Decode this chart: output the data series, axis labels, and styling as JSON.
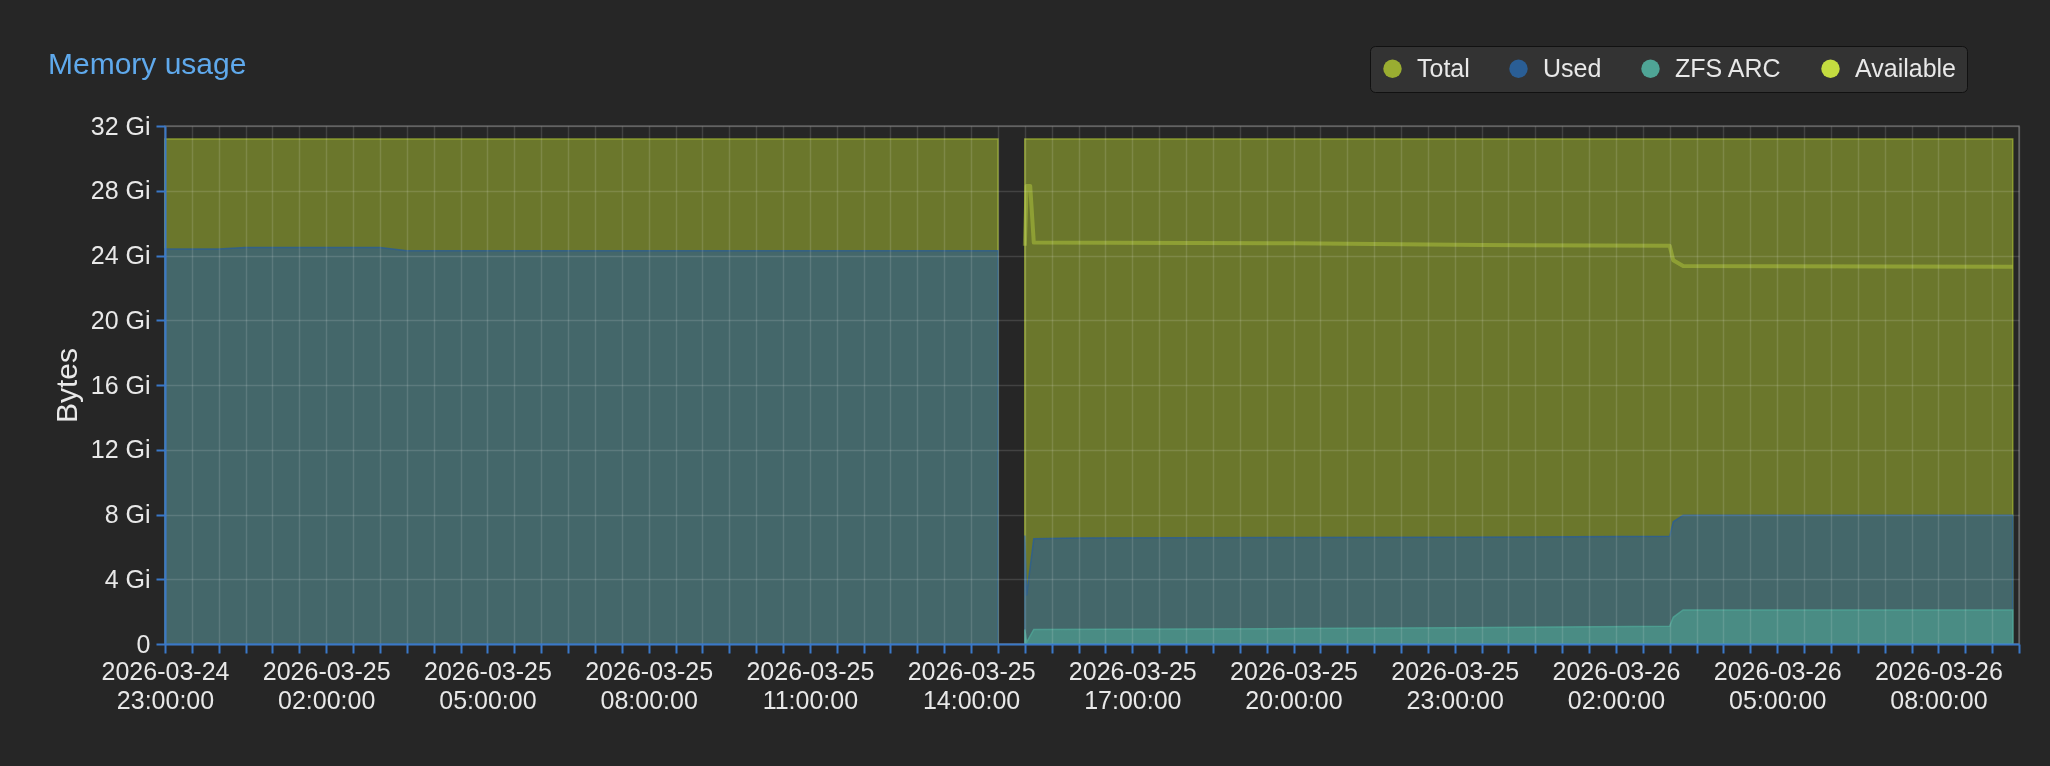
{
  "chart_data": {
    "type": "area",
    "title": "Memory usage",
    "ylabel": "Bytes",
    "xlim": [
      "2026-03-24T23:00",
      "2026-03-26T09:30"
    ],
    "xticks": [
      {
        "value": "2026-03-24T23:00",
        "label": "2026-03-24 23:00:00"
      },
      {
        "value": "2026-03-24T23:30",
        "label": null
      },
      {
        "value": "2026-03-25T00:00",
        "label": null
      },
      {
        "value": "2026-03-25T00:30",
        "label": null
      },
      {
        "value": "2026-03-25T01:00",
        "label": null
      },
      {
        "value": "2026-03-25T01:30",
        "label": null
      },
      {
        "value": "2026-03-25T02:00",
        "label": "2026-03-25 02:00:00"
      },
      {
        "value": "2026-03-25T02:30",
        "label": null
      },
      {
        "value": "2026-03-25T03:00",
        "label": null
      },
      {
        "value": "2026-03-25T03:30",
        "label": null
      },
      {
        "value": "2026-03-25T04:00",
        "label": null
      },
      {
        "value": "2026-03-25T04:30",
        "label": null
      },
      {
        "value": "2026-03-25T05:00",
        "label": "2026-03-25 05:00:00"
      },
      {
        "value": "2026-03-25T05:30",
        "label": null
      },
      {
        "value": "2026-03-25T06:00",
        "label": null
      },
      {
        "value": "2026-03-25T06:30",
        "label": null
      },
      {
        "value": "2026-03-25T07:00",
        "label": null
      },
      {
        "value": "2026-03-25T07:30",
        "label": null
      },
      {
        "value": "2026-03-25T08:00",
        "label": "2026-03-25 08:00:00"
      },
      {
        "value": "2026-03-25T08:30",
        "label": null
      },
      {
        "value": "2026-03-25T09:00",
        "label": null
      },
      {
        "value": "2026-03-25T09:30",
        "label": null
      },
      {
        "value": "2026-03-25T10:00",
        "label": null
      },
      {
        "value": "2026-03-25T10:30",
        "label": null
      },
      {
        "value": "2026-03-25T11:00",
        "label": "2026-03-25 11:00:00"
      },
      {
        "value": "2026-03-25T11:30",
        "label": null
      },
      {
        "value": "2026-03-25T12:00",
        "label": null
      },
      {
        "value": "2026-03-25T12:30",
        "label": null
      },
      {
        "value": "2026-03-25T13:00",
        "label": null
      },
      {
        "value": "2026-03-25T13:30",
        "label": null
      },
      {
        "value": "2026-03-25T14:00",
        "label": "2026-03-25 14:00:00"
      },
      {
        "value": "2026-03-25T14:30",
        "label": null
      },
      {
        "value": "2026-03-25T15:00",
        "label": null
      },
      {
        "value": "2026-03-25T15:30",
        "label": null
      },
      {
        "value": "2026-03-25T16:00",
        "label": null
      },
      {
        "value": "2026-03-25T16:30",
        "label": null
      },
      {
        "value": "2026-03-25T17:00",
        "label": "2026-03-25 17:00:00"
      },
      {
        "value": "2026-03-25T17:30",
        "label": null
      },
      {
        "value": "2026-03-25T18:00",
        "label": null
      },
      {
        "value": "2026-03-25T18:30",
        "label": null
      },
      {
        "value": "2026-03-25T19:00",
        "label": null
      },
      {
        "value": "2026-03-25T19:30",
        "label": null
      },
      {
        "value": "2026-03-25T20:00",
        "label": "2026-03-25 20:00:00"
      },
      {
        "value": "2026-03-25T20:30",
        "label": null
      },
      {
        "value": "2026-03-25T21:00",
        "label": null
      },
      {
        "value": "2026-03-25T21:30",
        "label": null
      },
      {
        "value": "2026-03-25T22:00",
        "label": null
      },
      {
        "value": "2026-03-25T22:30",
        "label": null
      },
      {
        "value": "2026-03-25T23:00",
        "label": "2026-03-25 23:00:00"
      },
      {
        "value": "2026-03-25T23:30",
        "label": null
      },
      {
        "value": "2026-03-26T00:00",
        "label": null
      },
      {
        "value": "2026-03-26T00:30",
        "label": null
      },
      {
        "value": "2026-03-26T01:00",
        "label": null
      },
      {
        "value": "2026-03-26T01:30",
        "label": null
      },
      {
        "value": "2026-03-26T02:00",
        "label": "2026-03-26 02:00:00"
      },
      {
        "value": "2026-03-26T02:30",
        "label": null
      },
      {
        "value": "2026-03-26T03:00",
        "label": null
      },
      {
        "value": "2026-03-26T03:30",
        "label": null
      },
      {
        "value": "2026-03-26T04:00",
        "label": null
      },
      {
        "value": "2026-03-26T04:30",
        "label": null
      },
      {
        "value": "2026-03-26T05:00",
        "label": "2026-03-26 05:00:00"
      },
      {
        "value": "2026-03-26T05:30",
        "label": null
      },
      {
        "value": "2026-03-26T06:00",
        "label": null
      },
      {
        "value": "2026-03-26T06:30",
        "label": null
      },
      {
        "value": "2026-03-26T07:00",
        "label": null
      },
      {
        "value": "2026-03-26T07:30",
        "label": null
      },
      {
        "value": "2026-03-26T08:00",
        "label": "2026-03-26 08:00:00"
      },
      {
        "value": "2026-03-26T08:30",
        "label": null
      },
      {
        "value": "2026-03-26T09:00",
        "label": null
      },
      {
        "value": "2026-03-26T09:30",
        "label": null
      }
    ],
    "ylim": [
      0,
      32
    ],
    "yticks": [
      0,
      {
        "value": 4,
        "label": "4 Gi"
      },
      {
        "value": 8,
        "label": "8 Gi"
      },
      {
        "value": 12,
        "label": "12 Gi"
      },
      {
        "value": 16,
        "label": "16 Gi"
      },
      {
        "value": 20,
        "label": "20 Gi"
      },
      {
        "value": 24,
        "label": "24 Gi"
      },
      {
        "value": 28,
        "label": "28 Gi"
      },
      {
        "value": 32,
        "label": "32 Gi"
      }
    ],
    "grid": true,
    "legend": "top right",
    "series": [
      {
        "name": "Total",
        "color": "#9aad31",
        "x": [
          "2026-03-24T23:00",
          "2026-03-25T14:30",
          "2026-03-25T14:45",
          "2026-03-25T15:00",
          "2026-03-26T09:23"
        ],
        "values": [
          31.2,
          31.2,
          null,
          31.2,
          31.2
        ]
      },
      {
        "name": "Used",
        "color": "#2a5e95",
        "x": [
          "2026-03-24T23:00",
          "2026-03-25T00:00",
          "2026-03-25T00:30",
          "2026-03-25T03:00",
          "2026-03-25T03:30",
          "2026-03-25T14:30",
          "2026-03-25T14:45",
          "2026-03-25T15:00",
          "2026-03-25T15:02",
          "2026-03-25T15:10",
          "2026-03-25T16:00",
          "2026-03-25T23:00",
          "2026-03-26T03:00",
          "2026-03-26T03:04",
          "2026-03-26T03:15",
          "2026-03-26T09:23"
        ],
        "values": [
          24.4,
          24.4,
          24.5,
          24.5,
          24.3,
          24.3,
          null,
          6.7,
          3,
          6.5,
          6.55,
          6.6,
          6.65,
          7.55,
          7.95,
          7.95
        ]
      },
      {
        "name": "ZFS ARC",
        "color": "#4fa596",
        "x": [
          "2026-03-25T15:00",
          "2026-03-25T15:02",
          "2026-03-25T15:10",
          "2026-03-25T20:00",
          "2026-03-25T23:00",
          "2026-03-26T03:00",
          "2026-03-26T03:04",
          "2026-03-26T03:15",
          "2026-03-26T09:23"
        ],
        "values": [
          0.9,
          0.1,
          0.9,
          0.95,
          1.0,
          1.1,
          1.65,
          2.1,
          2.1
        ]
      },
      {
        "name": "Available",
        "type": "line",
        "color": "#c4dc40",
        "x": [
          "2026-03-25T15:00",
          "2026-03-25T15:02",
          "2026-03-25T15:06",
          "2026-03-25T15:10",
          "2026-03-25T20:00",
          "2026-03-25T23:30",
          "2026-03-26T03:00",
          "2026-03-26T03:04",
          "2026-03-26T03:15",
          "2026-03-26T09:23"
        ],
        "values": [
          24.6,
          28.3,
          28.3,
          24.8,
          24.75,
          24.65,
          24.6,
          23.7,
          23.35,
          23.3
        ]
      }
    ]
  }
}
